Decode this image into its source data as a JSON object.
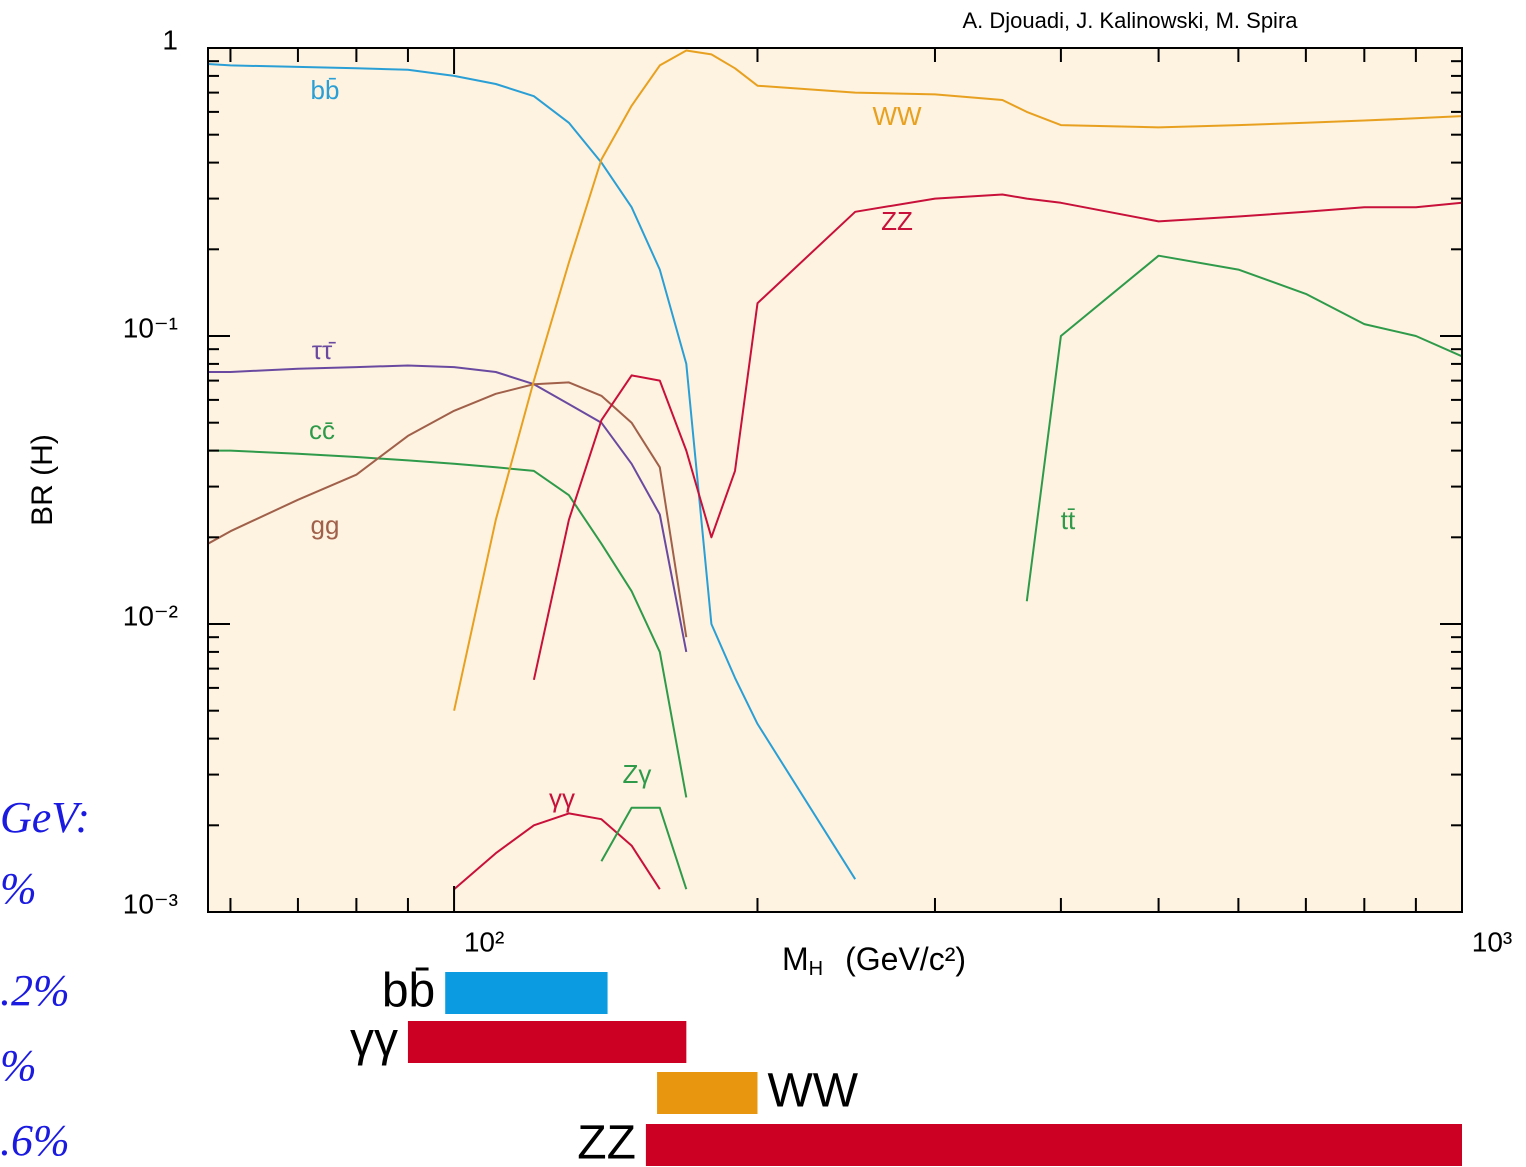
{
  "chart_data": {
    "type": "line",
    "credit": "A. Djouadi,  J. Kalinowski,  M. Spira",
    "y_label": "BR (H)",
    "x_label": {
      "symbol": "M",
      "subscript": "H",
      "unit": "(GeV/c²)"
    },
    "log_x": true,
    "log_y": true,
    "xlim": [
      57,
      1000
    ],
    "ylim": [
      0.001,
      1
    ],
    "xticks": [
      {
        "value": 100,
        "label": "10²"
      },
      {
        "value": 1000,
        "label": "10³"
      }
    ],
    "yticks": [
      {
        "value": 0.001,
        "label": "10⁻³"
      },
      {
        "value": 0.01,
        "label": "10⁻²"
      },
      {
        "value": 0.1,
        "label": "10⁻¹"
      },
      1
    ],
    "xminorticks": [
      60,
      70,
      80,
      90,
      200,
      300,
      400,
      500,
      600,
      700,
      800,
      900
    ],
    "yminorticks": [
      0.002,
      0.003,
      0.004,
      0.005,
      0.006,
      0.007,
      0.008,
      0.009,
      0.02,
      0.03,
      0.04,
      0.05,
      0.06,
      0.07,
      0.08,
      0.09,
      0.2,
      0.3,
      0.4,
      0.5,
      0.6,
      0.7,
      0.8,
      0.9
    ],
    "plot_background": "#fdf3e0",
    "x": [
      57,
      60,
      70,
      80,
      90,
      100,
      110,
      120,
      130,
      140,
      150,
      160,
      170,
      180,
      190,
      200,
      250,
      300,
      350,
      370,
      400,
      500,
      600,
      700,
      800,
      900,
      1000
    ],
    "series": [
      {
        "name": "bb̄",
        "color": "#2a9fd6",
        "values": [
          0.88,
          0.87,
          0.86,
          0.85,
          0.84,
          0.8,
          0.75,
          0.68,
          0.55,
          0.4,
          0.28,
          0.17,
          0.08,
          0.01,
          0.0065,
          0.0045,
          0.0013,
          null,
          null,
          null,
          null,
          null,
          null,
          null,
          null,
          null,
          null
        ]
      },
      {
        "name": "ττ̄",
        "color": "#6a4aa0",
        "values": [
          0.075,
          0.075,
          0.077,
          0.078,
          0.079,
          0.078,
          0.075,
          0.068,
          0.058,
          0.05,
          0.036,
          0.024,
          0.008,
          null,
          null,
          null,
          null,
          null,
          null,
          null,
          null,
          null,
          null,
          null,
          null,
          null,
          null
        ]
      },
      {
        "name": "cc̄",
        "color": "#2e9a4a",
        "values": [
          0.04,
          0.04,
          0.039,
          0.038,
          0.037,
          0.036,
          0.035,
          0.034,
          0.028,
          0.019,
          0.013,
          0.008,
          0.0025,
          null,
          null,
          null,
          null,
          null,
          null,
          null,
          null,
          null,
          null,
          null,
          null,
          null,
          null
        ]
      },
      {
        "name": "gg",
        "color": "#a0604a",
        "values": [
          0.019,
          0.021,
          0.027,
          0.033,
          0.045,
          0.055,
          0.063,
          0.068,
          0.069,
          0.062,
          0.05,
          0.035,
          0.009,
          null,
          null,
          null,
          null,
          null,
          null,
          null,
          null,
          null,
          null,
          null,
          null,
          null,
          null
        ]
      },
      {
        "name": "WW",
        "color": "#e8a020",
        "values": [
          null,
          null,
          null,
          null,
          null,
          0.005,
          0.023,
          0.07,
          0.18,
          0.41,
          0.63,
          0.87,
          0.98,
          0.95,
          0.85,
          0.74,
          0.7,
          0.69,
          0.66,
          0.6,
          0.54,
          0.53,
          0.54,
          0.55,
          0.56,
          0.57,
          0.58
        ]
      },
      {
        "name": "ZZ",
        "color": "#c8103a",
        "values": [
          null,
          null,
          null,
          null,
          null,
          null,
          null,
          0.0064,
          0.023,
          0.051,
          0.073,
          0.07,
          0.04,
          0.02,
          0.034,
          0.13,
          0.27,
          0.3,
          0.31,
          0.3,
          0.29,
          0.25,
          0.26,
          0.27,
          0.28,
          0.28,
          0.29
        ]
      },
      {
        "name": "tt̄",
        "color": "#2e9a4a",
        "values": [
          null,
          null,
          null,
          null,
          null,
          null,
          null,
          null,
          null,
          null,
          null,
          null,
          null,
          null,
          null,
          null,
          null,
          null,
          null,
          0.012,
          0.1,
          0.19,
          0.17,
          0.14,
          0.11,
          0.1,
          0.085
        ]
      },
      {
        "name": "γγ",
        "color": "#c8103a",
        "values": [
          null,
          null,
          null,
          null,
          null,
          0.0012,
          0.0016,
          0.002,
          0.0022,
          0.0021,
          0.0017,
          0.0012,
          null,
          null,
          null,
          null,
          null,
          null,
          null,
          null,
          null,
          null,
          null,
          null,
          null,
          null,
          null
        ]
      },
      {
        "name": "Zγ",
        "color": "#2e9a4a",
        "values": [
          null,
          null,
          null,
          null,
          null,
          null,
          null,
          null,
          null,
          0.0015,
          0.0023,
          0.0023,
          0.0012,
          null,
          null,
          null,
          null,
          null,
          null,
          null,
          null,
          null,
          null,
          null,
          null,
          null,
          null
        ]
      }
    ],
    "ranges": [
      {
        "name": "bb̄",
        "color": "#0a9be0",
        "range": [
          98,
          142
        ]
      },
      {
        "name": "γγ",
        "color": "#cc0022",
        "range": [
          90,
          170
        ]
      },
      {
        "name": "WW",
        "color": "#e8950f",
        "range": [
          159,
          200
        ]
      },
      {
        "name": "ZZ",
        "color": "#cc0022",
        "range": [
          155,
          1000
        ]
      }
    ],
    "annotations": [
      "GeV:",
      "%",
      ".2%",
      "%",
      ".6%"
    ]
  }
}
